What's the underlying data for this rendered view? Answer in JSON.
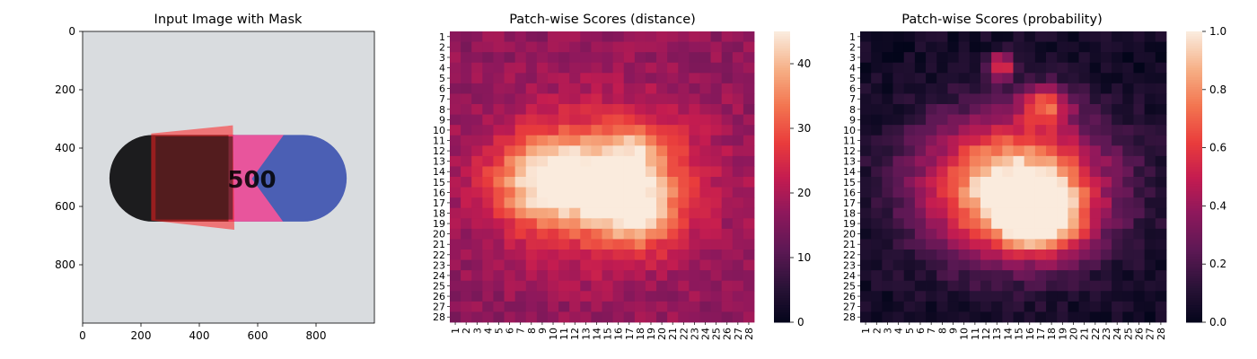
{
  "chart_data": [
    {
      "type": "image",
      "title": "Input Image with Mask",
      "xlim": [
        0,
        1000
      ],
      "ylim": [
        1000,
        0
      ],
      "xticks": [
        0,
        200,
        400,
        600,
        800
      ],
      "yticks": [
        0,
        200,
        400,
        600,
        800
      ],
      "image_content": {
        "background": "#d9dcdf",
        "capsule_left_color": "#1c1c1e",
        "capsule_middle_color": "#e8559c",
        "capsule_right_color": "#4b5fb4",
        "mask_color": "#ff2020",
        "printed_text": "500"
      }
    },
    {
      "type": "heatmap",
      "title": "Patch-wise Scores (distance)",
      "rows": 28,
      "cols": 28,
      "tick_labels": [
        "1",
        "2",
        "3",
        "4",
        "5",
        "6",
        "7",
        "8",
        "9",
        "10",
        "11",
        "12",
        "13",
        "14",
        "15",
        "16",
        "17",
        "18",
        "19",
        "20",
        "21",
        "22",
        "23",
        "24",
        "25",
        "26",
        "27",
        "28"
      ],
      "colormap": "rocket",
      "vmin": 0,
      "vmax": 45,
      "colorbar_ticks": [
        0,
        10,
        20,
        30,
        40
      ],
      "blobs": [
        {
          "row": 15.0,
          "col": 10.0,
          "amp": 24,
          "sr": 2.8,
          "sc": 3.6
        },
        {
          "row": 17.6,
          "col": 17.6,
          "amp": 22,
          "sr": 2.4,
          "sc": 2.6
        },
        {
          "row": 12.0,
          "col": 17.5,
          "amp": 14,
          "sr": 1.8,
          "sc": 2.4
        },
        {
          "row": 15.0,
          "col": 14.5,
          "amp": 15,
          "sr": 5.2,
          "sc": 6.6
        }
      ],
      "base_value": 17
    },
    {
      "type": "heatmap",
      "title": "Patch-wise Scores (probability)",
      "rows": 28,
      "cols": 28,
      "tick_labels": [
        "1",
        "2",
        "3",
        "4",
        "5",
        "6",
        "7",
        "8",
        "9",
        "10",
        "11",
        "12",
        "13",
        "14",
        "15",
        "16",
        "17",
        "18",
        "19",
        "20",
        "21",
        "22",
        "23",
        "24",
        "25",
        "26",
        "27",
        "28"
      ],
      "colormap": "rocket",
      "vmin": 0.0,
      "vmax": 1.0,
      "colorbar_ticks": [
        0.0,
        0.2,
        0.4,
        0.6,
        0.8,
        1.0
      ],
      "blobs": [
        {
          "row": 15.5,
          "col": 14.5,
          "amp": 1.0,
          "sr": 4.6,
          "sc": 5.8
        },
        {
          "row": 18.5,
          "col": 17.0,
          "amp": 0.7,
          "sr": 2.2,
          "sc": 2.6
        },
        {
          "row": 3.8,
          "col": 13.4,
          "amp": 0.55,
          "sr": 0.9,
          "sc": 0.8
        },
        {
          "row": 7.5,
          "col": 17.5,
          "amp": 0.5,
          "sr": 1.3,
          "sc": 1.6
        }
      ],
      "base_value": 0.05
    }
  ]
}
